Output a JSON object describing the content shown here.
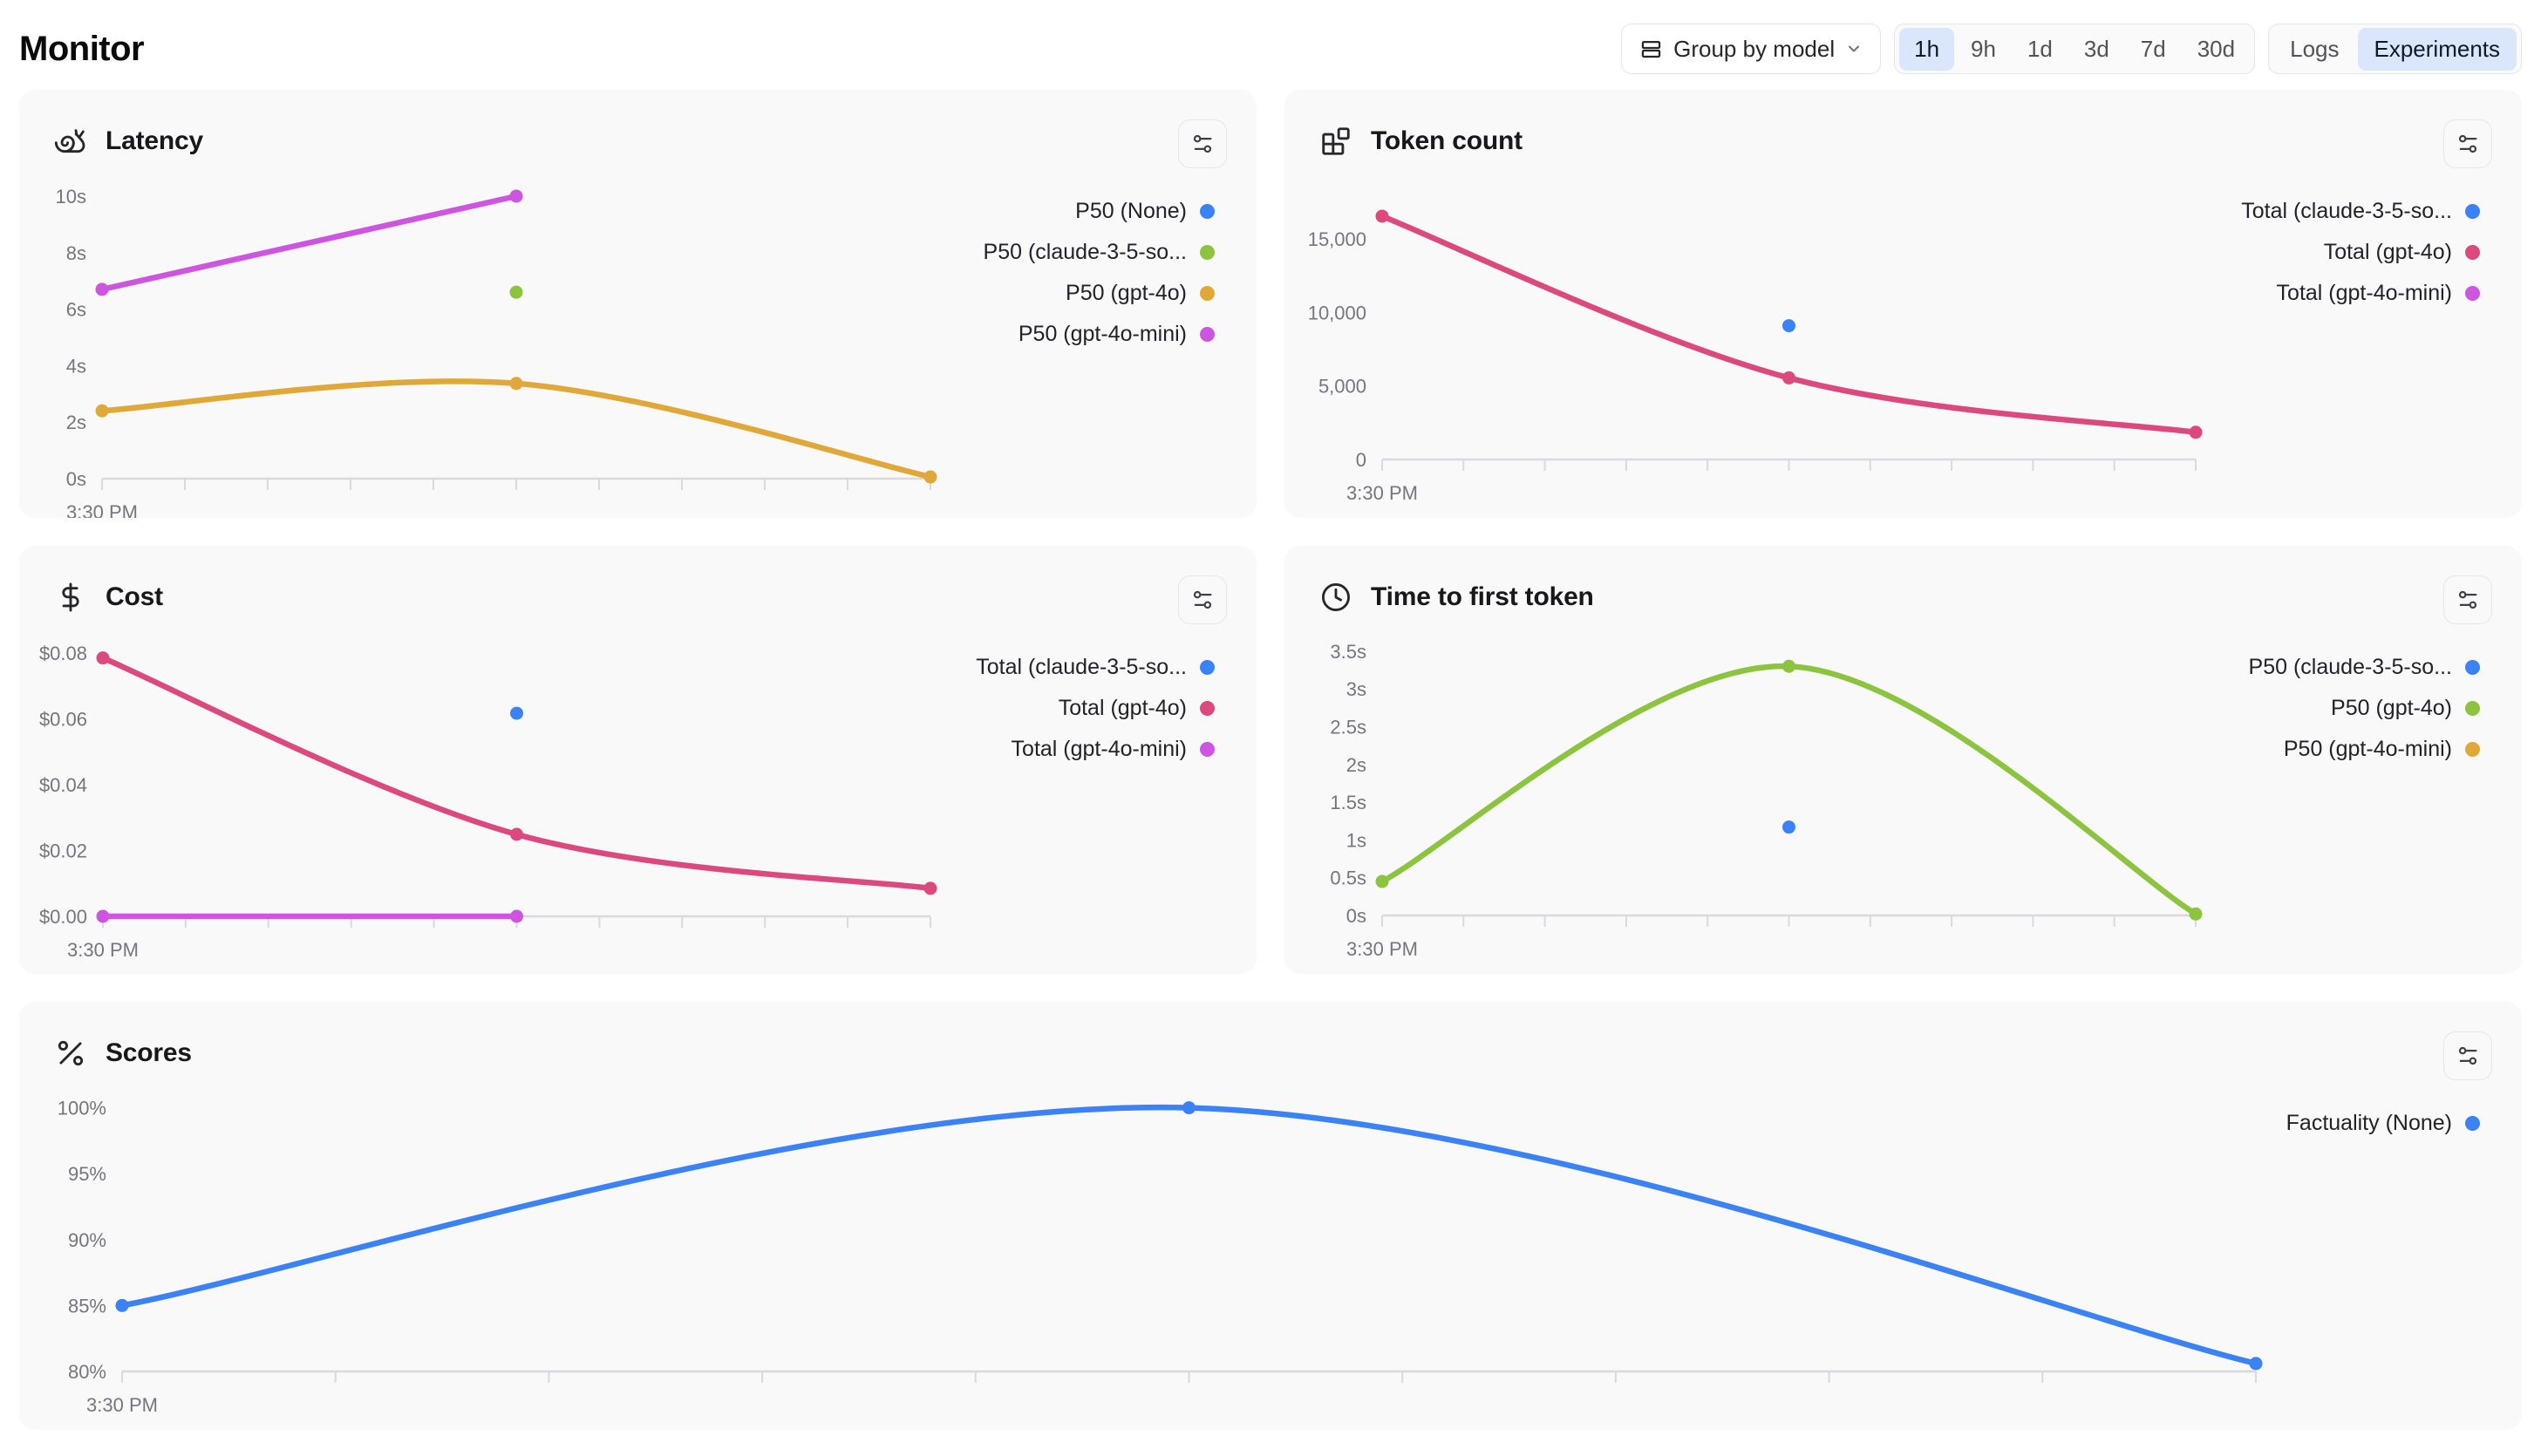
{
  "page": {
    "title": "Monitor"
  },
  "header": {
    "group_by": {
      "label": "Group by model",
      "icon": "rows-icon",
      "chevron": "chevron-down-icon"
    },
    "time_ranges": {
      "options": [
        "1h",
        "9h",
        "1d",
        "3d",
        "7d",
        "30d"
      ],
      "selected": "1h"
    },
    "view_toggle": {
      "options": [
        "Logs",
        "Experiments"
      ],
      "selected": "Experiments"
    }
  },
  "colors": {
    "blue": "#3b82f6",
    "pink": "#dc4a7d",
    "magenta": "#cd55e0",
    "green": "#8cc43f",
    "orange": "#e0a838",
    "accent_selected_bg": "#d9e6fb",
    "axis": "#d9d9de",
    "axis_text": "#75757e",
    "card_bg": "#f9f9fa"
  },
  "chart_data": [
    {
      "id": "latency",
      "type": "line",
      "title": "Latency",
      "icon": "snail-icon",
      "x_label": "3:30 PM",
      "x_tick_count": 11,
      "y_unit": "seconds",
      "grid": false,
      "legend_position": "right",
      "y_ticks": [
        {
          "label": "10s",
          "value": 10
        },
        {
          "label": "8s",
          "value": 8
        },
        {
          "label": "6s",
          "value": 6
        },
        {
          "label": "4s",
          "value": 4
        },
        {
          "label": "2s",
          "value": 2
        },
        {
          "label": "0s",
          "value": 0
        }
      ],
      "series": [
        {
          "name": "P50 (None)",
          "color": "#3b82f6",
          "points": []
        },
        {
          "name": "P50 (claude-3-5-so...",
          "color": "#8cc43f",
          "points": [
            {
              "x": 0.5,
              "y": 6.6
            }
          ]
        },
        {
          "name": "P50 (gpt-4o)",
          "color": "#e0a838",
          "points": [
            {
              "x": 0,
              "y": 2.4
            },
            {
              "x": 0.5,
              "y": 3.37
            },
            {
              "x": 1,
              "y": 0.06
            }
          ]
        },
        {
          "name": "P50 (gpt-4o-mini)",
          "color": "#cd55e0",
          "points": [
            {
              "x": 0,
              "y": 6.7
            },
            {
              "x": 0.5,
              "y": 10
            }
          ]
        }
      ]
    },
    {
      "id": "token_count",
      "type": "line",
      "title": "Token count",
      "icon": "blocks-icon",
      "x_label": "3:30 PM",
      "x_tick_count": 11,
      "y_unit": "tokens",
      "grid": false,
      "legend_position": "right",
      "y_ticks": [
        {
          "label": "15,000",
          "value": 15000
        },
        {
          "label": "10,000",
          "value": 10000
        },
        {
          "label": "5,000",
          "value": 5000
        },
        {
          "label": "0",
          "value": 0
        }
      ],
      "series": [
        {
          "name": "Total (claude-3-5-so...",
          "color": "#3b82f6",
          "points": [
            {
              "x": 0.5,
              "y": 9100
            }
          ]
        },
        {
          "name": "Total (gpt-4o)",
          "color": "#dc4a7d",
          "points": [
            {
              "x": 0,
              "y": 16550
            },
            {
              "x": 0.5,
              "y": 5550
            },
            {
              "x": 1,
              "y": 1850
            }
          ]
        },
        {
          "name": "Total (gpt-4o-mini)",
          "color": "#cd55e0",
          "points": []
        }
      ]
    },
    {
      "id": "cost",
      "type": "line",
      "title": "Cost",
      "icon": "dollar-icon",
      "x_label": "3:30 PM",
      "x_tick_count": 11,
      "y_unit": "usd",
      "grid": false,
      "legend_position": "right",
      "y_ticks": [
        {
          "label": "$0.08",
          "value": 0.08
        },
        {
          "label": "$0.06",
          "value": 0.06
        },
        {
          "label": "$0.04",
          "value": 0.04
        },
        {
          "label": "$0.02",
          "value": 0.02
        },
        {
          "label": "$0.00",
          "value": 0
        }
      ],
      "series": [
        {
          "name": "Total (claude-3-5-so...",
          "color": "#3b82f6",
          "points": [
            {
              "x": 0.5,
              "y": 0.0617
            }
          ]
        },
        {
          "name": "Total (gpt-4o)",
          "color": "#dc4a7d",
          "points": [
            {
              "x": 0,
              "y": 0.0785
            },
            {
              "x": 0.5,
              "y": 0.0249
            },
            {
              "x": 1,
              "y": 0.0085
            }
          ]
        },
        {
          "name": "Total (gpt-4o-mini)",
          "color": "#cd55e0",
          "points": [
            {
              "x": 0,
              "y": 0
            },
            {
              "x": 0.5,
              "y": 0
            }
          ]
        }
      ]
    },
    {
      "id": "time_to_first_token",
      "type": "line",
      "title": "Time to first token",
      "icon": "clock-icon",
      "x_label": "3:30 PM",
      "x_tick_count": 11,
      "y_unit": "seconds",
      "grid": false,
      "legend_position": "right",
      "y_ticks": [
        {
          "label": "3.5s",
          "value": 3.5
        },
        {
          "label": "3s",
          "value": 3
        },
        {
          "label": "2.5s",
          "value": 2.5
        },
        {
          "label": "2s",
          "value": 2
        },
        {
          "label": "1.5s",
          "value": 1.5
        },
        {
          "label": "1s",
          "value": 1
        },
        {
          "label": "0.5s",
          "value": 0.5
        },
        {
          "label": "0s",
          "value": 0
        }
      ],
      "series": [
        {
          "name": "P50 (claude-3-5-so...",
          "color": "#3b82f6",
          "points": [
            {
              "x": 0.5,
              "y": 1.17
            }
          ]
        },
        {
          "name": "P50 (gpt-4o)",
          "color": "#8cc43f",
          "points": [
            {
              "x": 0,
              "y": 0.45
            },
            {
              "x": 0.5,
              "y": 3.3
            },
            {
              "x": 1,
              "y": 0.02
            }
          ]
        },
        {
          "name": "P50 (gpt-4o-mini)",
          "color": "#e0a838",
          "points": []
        }
      ]
    },
    {
      "id": "scores",
      "type": "line",
      "title": "Scores",
      "icon": "percent-icon",
      "x_label": "3:30 PM",
      "x_tick_count": 11,
      "y_unit": "percent",
      "grid": false,
      "legend_position": "right",
      "y_ticks": [
        {
          "label": "100%",
          "value": 100
        },
        {
          "label": "95%",
          "value": 95
        },
        {
          "label": "90%",
          "value": 90
        },
        {
          "label": "85%",
          "value": 85
        },
        {
          "label": "80%",
          "value": 80
        }
      ],
      "series": [
        {
          "name": "Factuality (None)",
          "color": "#3b82f6",
          "points": [
            {
              "x": 0,
              "y": 85
            },
            {
              "x": 0.5,
              "y": 100
            },
            {
              "x": 1,
              "y": 80.6
            }
          ]
        }
      ]
    }
  ]
}
